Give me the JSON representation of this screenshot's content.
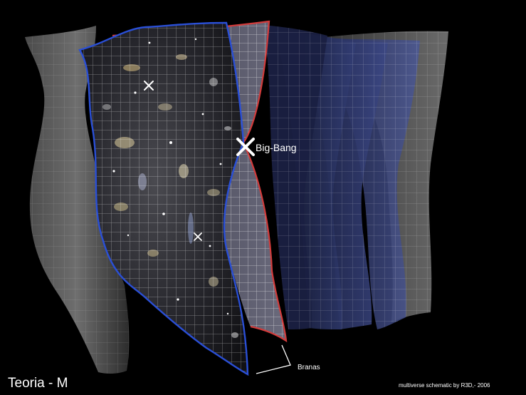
{
  "labels": {
    "big_bang": "Big-Bang",
    "branas": "Branas",
    "title": "Teoria - M",
    "credit": "multiverse schematic by R3D,- 2006"
  },
  "colors": {
    "background": "#000000",
    "main_brane_outline": "#2a4fd6",
    "second_brane_outline": "#d23b3b",
    "grid_lines": "#ffffff",
    "blue_sheets": "#3a4a8c",
    "grey_sheets": "#8a8a8a",
    "marker": "#ffffff",
    "text": "#ffffff"
  }
}
